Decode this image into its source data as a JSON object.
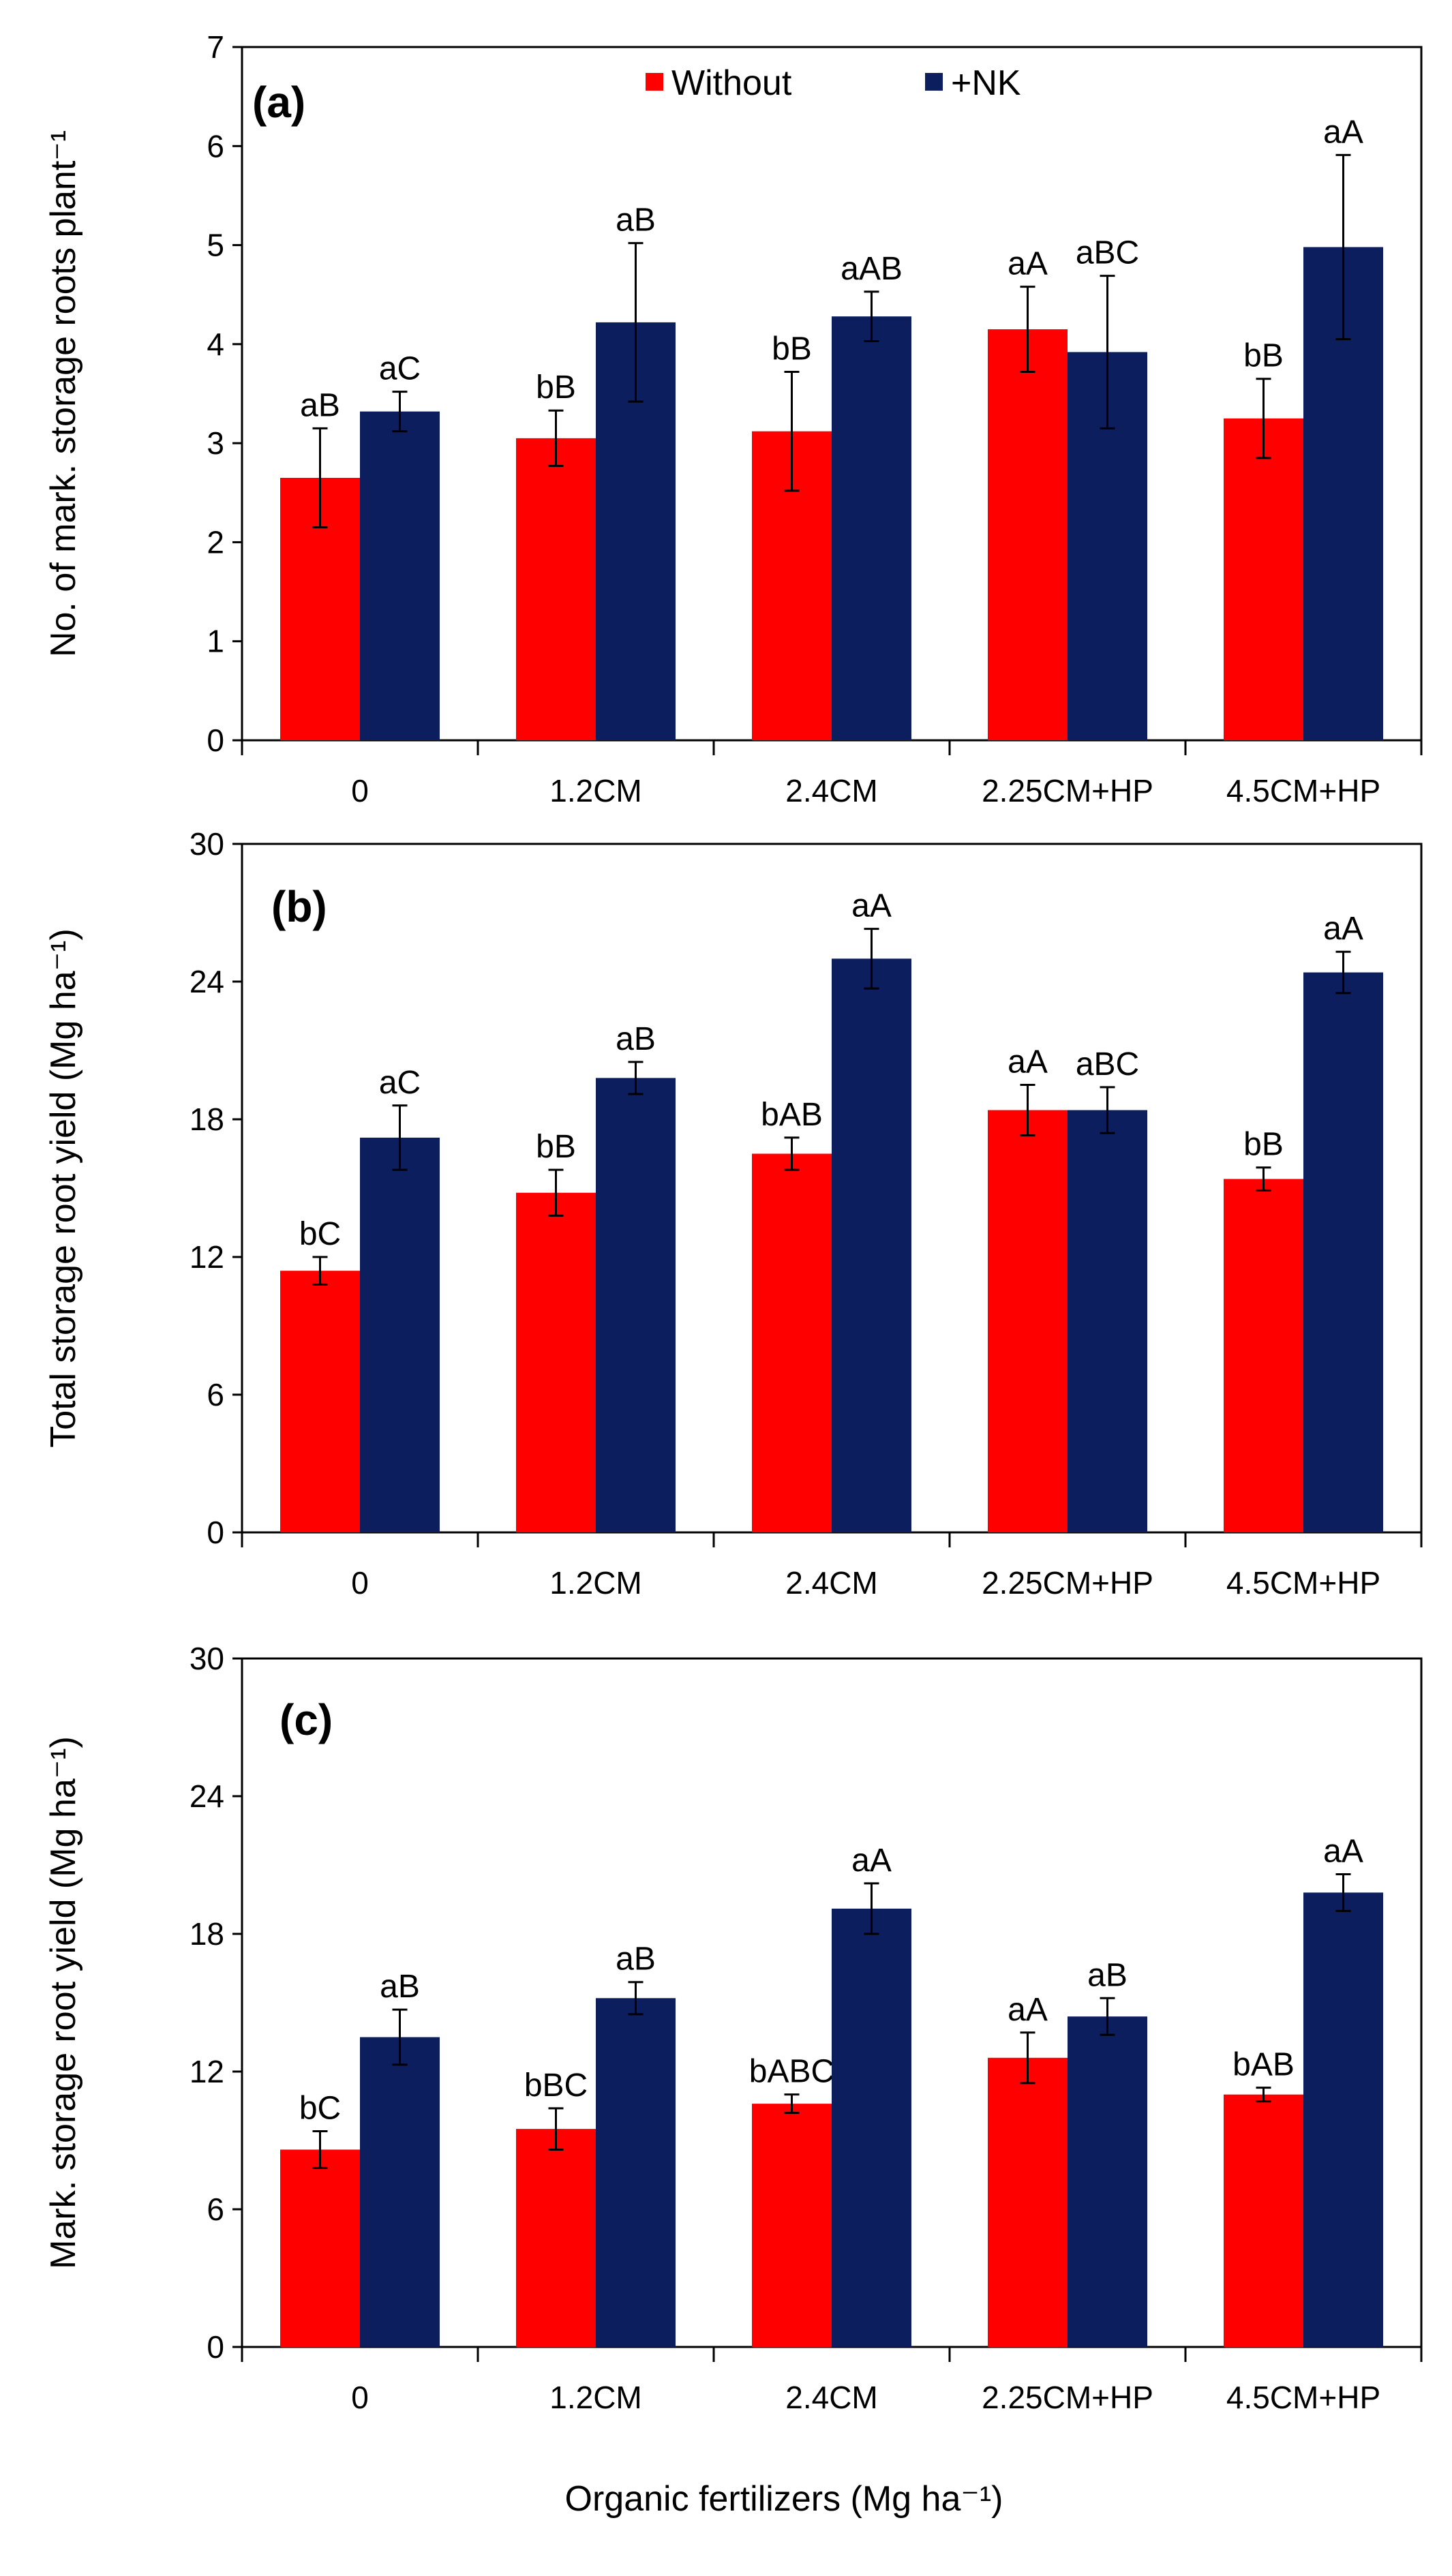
{
  "xlabel": "Organic fertilizers (Mg ha⁻¹)",
  "legend": {
    "without": "Without",
    "nk": "+NK"
  },
  "colors": {
    "without": "#ff0000",
    "nk": "#0c1e5e",
    "axis": "#000000"
  },
  "chart_data": [
    {
      "type": "bar",
      "panel": "(a)",
      "ylabel": "No. of mark. storage roots plant⁻¹",
      "ylim": [
        0,
        7
      ],
      "yticks": [
        0,
        1,
        2,
        3,
        4,
        5,
        6,
        7
      ],
      "categories": [
        "0",
        "1.2CM",
        "2.4CM",
        "2.25CM+HP",
        "4.5CM+HP"
      ],
      "legend_position": "top-center",
      "series": [
        {
          "name": "Without",
          "values": [
            2.65,
            3.05,
            3.12,
            4.15,
            3.25
          ],
          "errors": [
            0.5,
            0.28,
            0.6,
            0.43,
            0.4
          ],
          "labels": [
            "aB",
            "bB",
            "bB",
            "aA",
            "bB"
          ]
        },
        {
          "name": "+NK",
          "values": [
            3.32,
            4.22,
            4.28,
            3.92,
            4.98
          ],
          "errors": [
            0.2,
            0.8,
            0.25,
            0.77,
            0.93
          ],
          "labels": [
            "aC",
            "aB",
            "aAB",
            "aBC",
            "aA"
          ]
        }
      ]
    },
    {
      "type": "bar",
      "panel": "(b)",
      "ylabel": "Total storage root yield (Mg ha⁻¹)",
      "ylim": [
        0,
        30
      ],
      "yticks": [
        0,
        6,
        12,
        18,
        24,
        30
      ],
      "categories": [
        "0",
        "1.2CM",
        "2.4CM",
        "2.25CM+HP",
        "4.5CM+HP"
      ],
      "series": [
        {
          "name": "Without",
          "values": [
            11.4,
            14.8,
            16.5,
            18.4,
            15.4
          ],
          "errors": [
            0.6,
            1.0,
            0.7,
            1.1,
            0.5
          ],
          "labels": [
            "bC",
            "bB",
            "bAB",
            "aA",
            "bB"
          ]
        },
        {
          "name": "+NK",
          "values": [
            17.2,
            19.8,
            25.0,
            18.4,
            24.4
          ],
          "errors": [
            1.4,
            0.7,
            1.3,
            1.0,
            0.9
          ],
          "labels": [
            "aC",
            "aB",
            "aA",
            "aBC",
            "aA"
          ]
        }
      ]
    },
    {
      "type": "bar",
      "panel": "(c)",
      "ylabel": "Mark. storage root yield (Mg ha⁻¹)",
      "ylim": [
        0,
        30
      ],
      "yticks": [
        0,
        6,
        12,
        18,
        24,
        30
      ],
      "categories": [
        "0",
        "1.2CM",
        "2.4CM",
        "2.25CM+HP",
        "4.5CM+HP"
      ],
      "series": [
        {
          "name": "Without",
          "values": [
            8.6,
            9.5,
            10.6,
            12.6,
            11.0
          ],
          "errors": [
            0.8,
            0.9,
            0.4,
            1.1,
            0.3
          ],
          "labels": [
            "bC",
            "bBC",
            "bABC",
            "aA",
            "bAB"
          ]
        },
        {
          "name": "+NK",
          "values": [
            13.5,
            15.2,
            19.1,
            14.4,
            19.8
          ],
          "errors": [
            1.2,
            0.7,
            1.1,
            0.8,
            0.8
          ],
          "labels": [
            "aB",
            "aB",
            "aA",
            "aB",
            "aA"
          ]
        }
      ]
    }
  ]
}
